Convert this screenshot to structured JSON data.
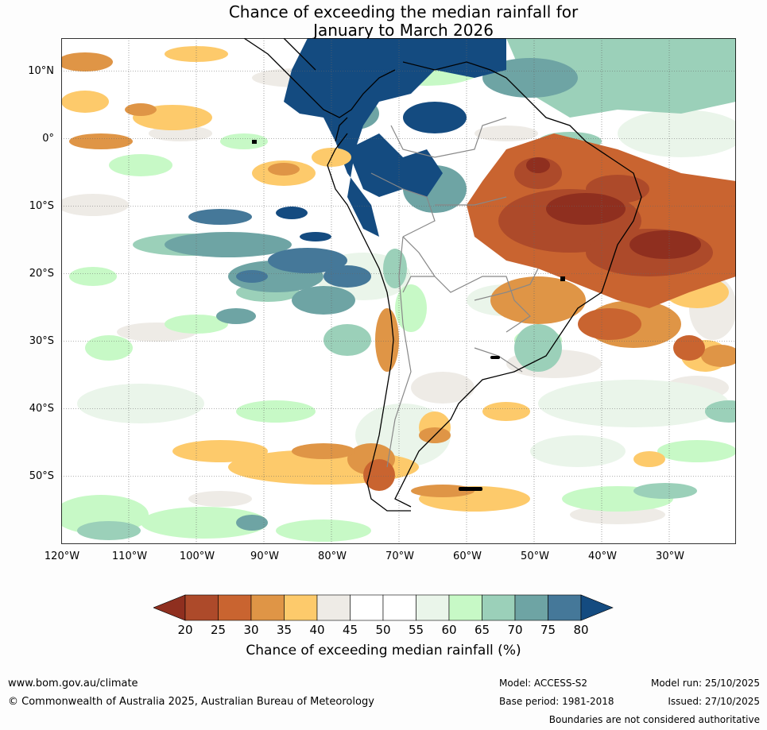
{
  "title_line1": "Chance of exceeding the median rainfall for",
  "title_line2": "January to March 2026",
  "lat_labels": [
    "10°N",
    "0°",
    "10°S",
    "20°S",
    "30°S",
    "40°S",
    "50°S"
  ],
  "lon_labels": [
    "120°W",
    "110°W",
    "100°W",
    "90°W",
    "80°W",
    "70°W",
    "60°W",
    "50°W",
    "40°W",
    "30°W"
  ],
  "legend": {
    "title": "Chance of exceeding median rainfall (%)",
    "ticks": [
      "20",
      "25",
      "30",
      "35",
      "40",
      "45",
      "50",
      "55",
      "60",
      "65",
      "70",
      "75",
      "80"
    ],
    "colors": [
      "#8f2f1f",
      "#ad4a2a",
      "#c96430",
      "#df9546",
      "#fdca6b",
      "#eeebe6",
      "#ffffff",
      "#ffffff",
      "#eaf5ea",
      "#c7f9c6",
      "#9bd0b9",
      "#6ea4a4",
      "#457899",
      "#144b80"
    ]
  },
  "footer": {
    "website": "www.bom.gov.au/climate",
    "copyright": "© Commonwealth of Australia 2025, Australian Bureau of Meteorology",
    "model": "Model: ACCESS-S2",
    "base_period": "Base period: 1981-2018",
    "model_run": "Model run: 25/10/2025",
    "issued": "Issued: 27/10/2025",
    "disclaimer": "Boundaries are not considered authoritative"
  }
}
